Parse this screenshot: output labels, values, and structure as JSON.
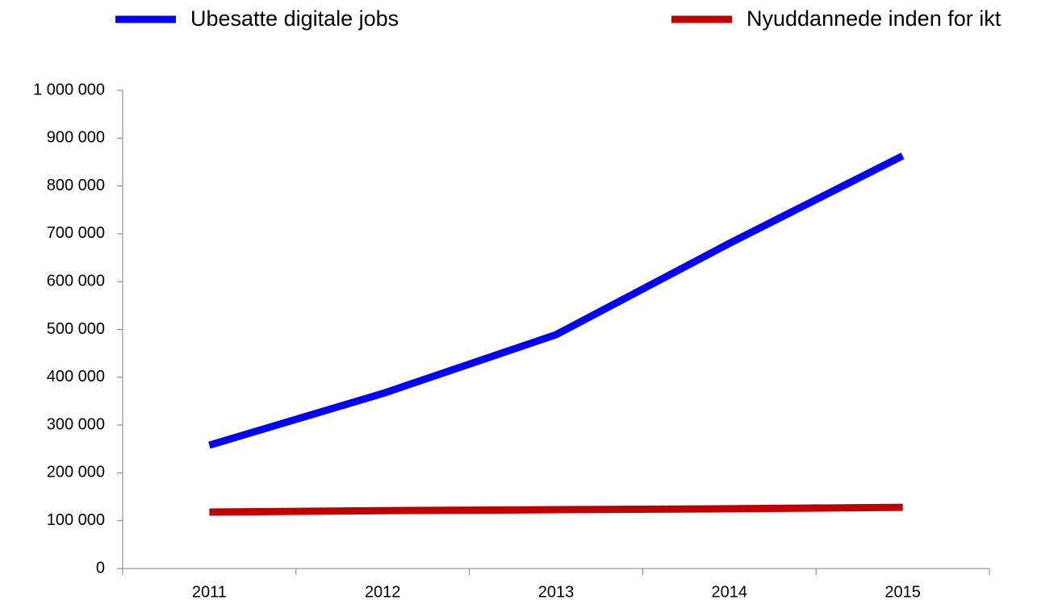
{
  "chart_data": {
    "type": "line",
    "categories": [
      "2011",
      "2012",
      "2013",
      "2014",
      "2015"
    ],
    "series": [
      {
        "name": "Ubesatte digitale jobs",
        "color": "#0000ff",
        "values": [
          258000,
          366000,
          489000,
          680000,
          863000
        ]
      },
      {
        "name": "Nyuddannede inden for ikt",
        "color": "#c00000",
        "values": [
          118000,
          121000,
          123000,
          125000,
          128000
        ]
      }
    ],
    "ylim": [
      0,
      1000000
    ],
    "yticks": [
      0,
      {
        "value": 100000,
        "label": "100 000"
      },
      {
        "value": 200000,
        "label": "200 000"
      },
      {
        "value": 300000,
        "label": "300 000"
      },
      {
        "value": 400000,
        "label": "400 000"
      },
      {
        "value": 500000,
        "label": "500 000"
      },
      {
        "value": 600000,
        "label": "600 000"
      },
      {
        "value": 700000,
        "label": "700 000"
      },
      {
        "value": 800000,
        "label": "800 000"
      },
      {
        "value": 900000,
        "label": "900 000"
      },
      {
        "value": 1000000,
        "label": "1 000 000"
      }
    ],
    "grid": false,
    "legend": "top"
  }
}
